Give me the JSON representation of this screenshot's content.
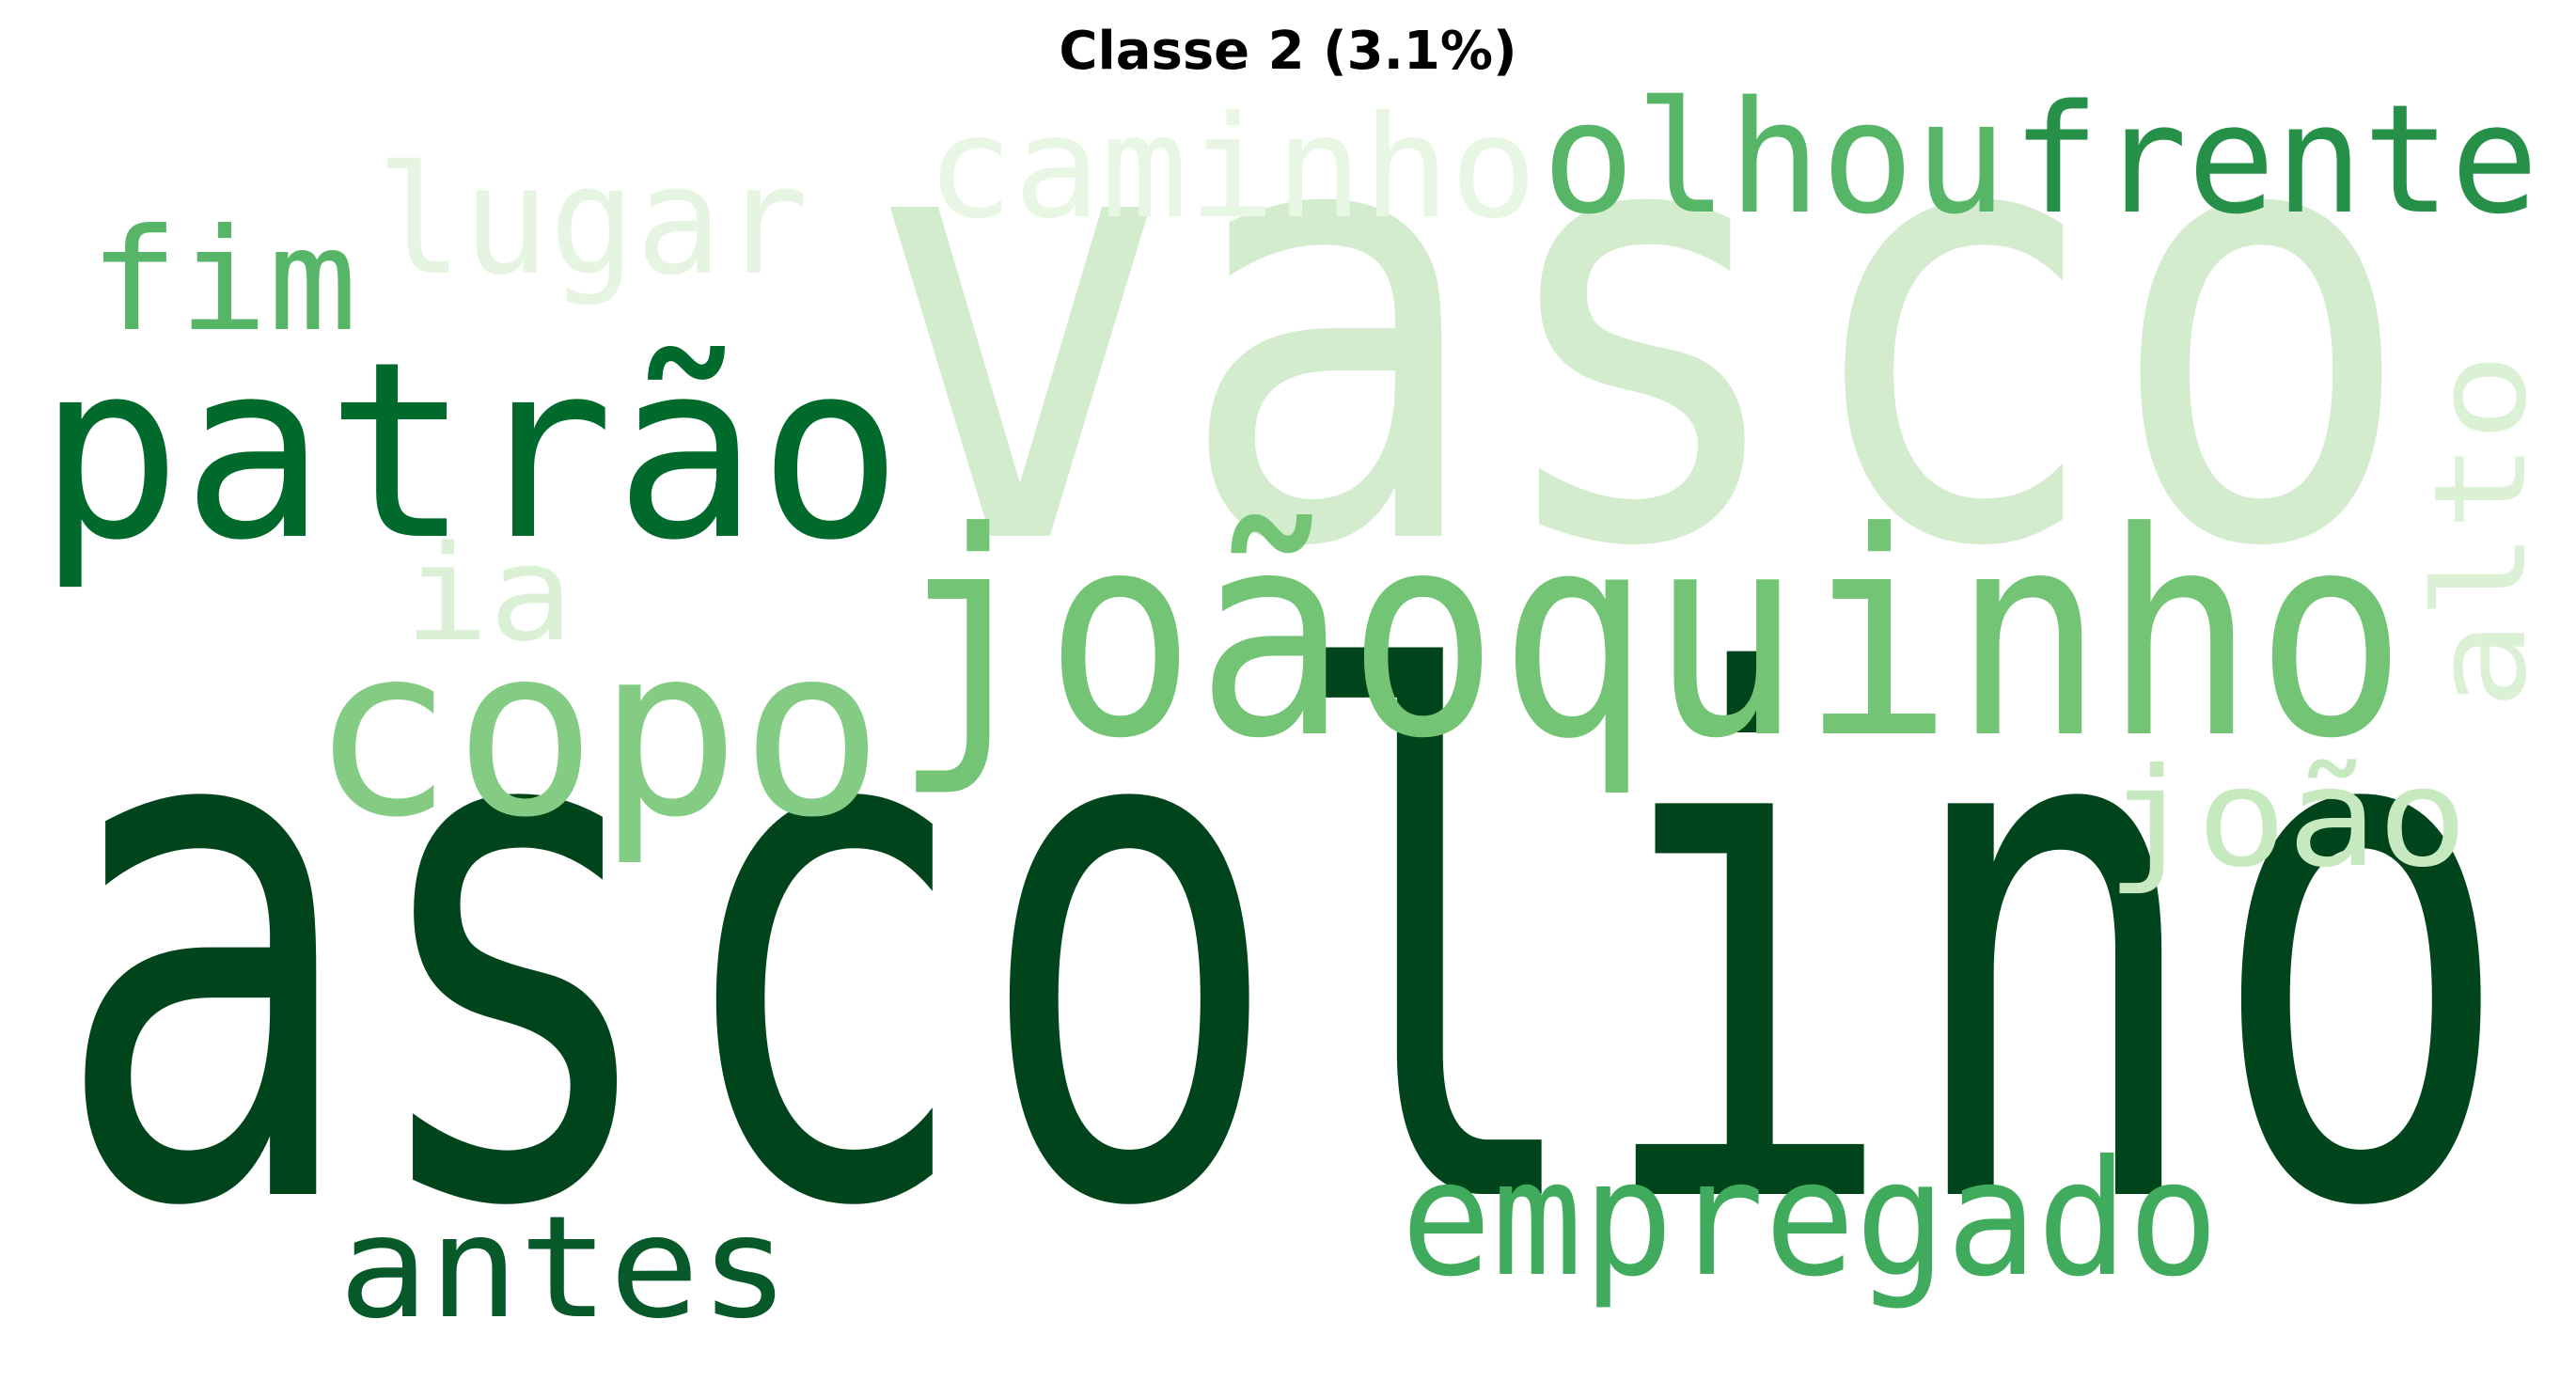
{
  "chart_data": {
    "type": "wordcloud",
    "title": "Classe 2 (3.1%)",
    "colormap": "Greens",
    "words": [
      {
        "text": "ascolino",
        "color": "#00441b"
      },
      {
        "text": "vasco",
        "color": "#d3ecce"
      },
      {
        "text": "joãoquinho",
        "color": "#74c476"
      },
      {
        "text": "patrão",
        "color": "#006a2c"
      },
      {
        "text": "copo",
        "color": "#84cc83"
      },
      {
        "text": "frente",
        "color": "#268f48"
      },
      {
        "text": "olhou",
        "color": "#56b567"
      },
      {
        "text": "caminho",
        "color": "#e8f6e4"
      },
      {
        "text": "lugar",
        "color": "#e6f5e1"
      },
      {
        "text": "empregado",
        "color": "#41ab5d"
      },
      {
        "text": "antes",
        "color": "#07592a"
      },
      {
        "text": "fim",
        "color": "#56b567"
      },
      {
        "text": "alto",
        "color": "#dbf1d6"
      },
      {
        "text": "joão",
        "color": "#c7e9c0"
      },
      {
        "text": "ia",
        "color": "#dbf1d6"
      }
    ]
  }
}
